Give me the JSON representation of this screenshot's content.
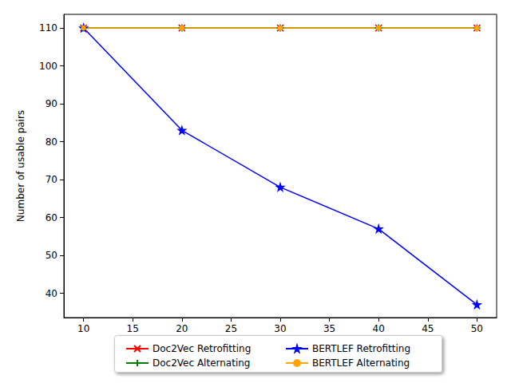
{
  "chart_data": {
    "type": "line",
    "y_label": "Number of usable pairs",
    "x": [
      10,
      20,
      30,
      40,
      50
    ],
    "xlim": [
      8,
      52
    ],
    "xticks": [
      10,
      15,
      20,
      25,
      30,
      35,
      40,
      45,
      50
    ],
    "ylim": [
      33.6,
      113.6
    ],
    "yticks": [
      40,
      50,
      60,
      70,
      80,
      90,
      100,
      110
    ],
    "grid": false,
    "legend": "bottom",
    "series": [
      {
        "name": "Doc2Vec Retrofitting",
        "color": "#ff0000",
        "marker": "x",
        "line_style": "solid",
        "values": [
          110,
          110,
          110,
          110,
          110
        ]
      },
      {
        "name": "Doc2Vec Alternating",
        "color": "#008000",
        "marker": "plus",
        "line_style": "solid",
        "values": [
          110,
          110,
          110,
          110,
          110
        ]
      },
      {
        "name": "BERTLEF Retrofitting",
        "color": "#0000ff",
        "marker": "star",
        "line_style": "solid",
        "values": [
          110,
          83,
          68,
          57,
          37
        ]
      },
      {
        "name": "BERTLEF Alternating",
        "color": "#ffa500",
        "marker": "point",
        "line_style": "solid",
        "values": [
          110,
          110,
          110,
          110,
          110
        ]
      }
    ]
  }
}
